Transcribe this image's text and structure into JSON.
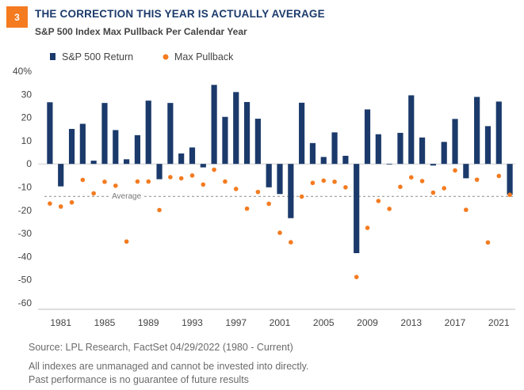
{
  "badge": "3",
  "title": "THE CORRECTION THIS YEAR IS ACTUALLY AVERAGE",
  "subtitle": "S&P 500 Index Max Pullback Per Calendar Year",
  "source": "Source: LPL Research, FactSet 04/29/2022 (1980 - Current)",
  "disclaimer1": "All indexes are unmanaged and cannot be invested into directly.",
  "disclaimer2": "Past performance is no guarantee of future results",
  "colors": {
    "bar": "#1b3a6b",
    "dot": "#f47b20",
    "title": "#1b3a6b",
    "badge": "#f47b20"
  },
  "chart_data": {
    "type": "bar",
    "title": "",
    "xlabel": "",
    "ylabel": "",
    "ylim": [
      -60,
      40
    ],
    "yticks": [
      40,
      30,
      20,
      10,
      0,
      -10,
      -20,
      -30,
      -40,
      -50,
      -60
    ],
    "ytick_labels": [
      "40%",
      "30",
      "20",
      "10",
      "0",
      "-10",
      "-20",
      "-30",
      "-40",
      "-50",
      "-60"
    ],
    "xtick_labels": [
      "1981",
      "1985",
      "1989",
      "1993",
      "1997",
      "2001",
      "2005",
      "2009",
      "2013",
      "2017",
      "2021"
    ],
    "xticks": [
      1981,
      1985,
      1989,
      1993,
      1997,
      2001,
      2005,
      2009,
      2013,
      2017,
      2021
    ],
    "legend_position": "top-left",
    "grid": false,
    "average_line": {
      "label": "Average",
      "value": -14
    },
    "categories": [
      1980,
      1981,
      1982,
      1983,
      1984,
      1985,
      1986,
      1987,
      1988,
      1989,
      1990,
      1991,
      1992,
      1993,
      1994,
      1995,
      1996,
      1997,
      1998,
      1999,
      2000,
      2001,
      2002,
      2003,
      2004,
      2005,
      2006,
      2007,
      2008,
      2009,
      2010,
      2011,
      2012,
      2013,
      2014,
      2015,
      2016,
      2017,
      2018,
      2019,
      2020,
      2021,
      2022
    ],
    "series": [
      {
        "name": "S&P 500 Return",
        "kind": "bar",
        "values": [
          26.6,
          -9.7,
          15.1,
          17.3,
          1.4,
          26.3,
          14.6,
          2.0,
          12.4,
          27.3,
          -6.6,
          26.3,
          4.5,
          7.1,
          -1.5,
          34.1,
          20.3,
          31.0,
          26.7,
          19.5,
          -10.1,
          -13.0,
          -23.4,
          26.4,
          9.0,
          3.0,
          13.6,
          3.5,
          -38.5,
          23.5,
          12.8,
          0.0,
          13.4,
          29.6,
          11.4,
          -0.7,
          9.5,
          19.4,
          -6.2,
          28.9,
          16.3,
          26.9,
          -13.3
        ]
      },
      {
        "name": "Max Pullback",
        "kind": "dot",
        "values": [
          -17.1,
          -18.4,
          -16.6,
          -6.9,
          -12.7,
          -7.7,
          -9.4,
          -33.5,
          -7.6,
          -7.6,
          -19.9,
          -5.7,
          -6.2,
          -5.0,
          -8.9,
          -2.5,
          -7.6,
          -10.8,
          -19.3,
          -12.1,
          -17.2,
          -29.7,
          -33.8,
          -14.1,
          -8.2,
          -7.2,
          -7.7,
          -10.1,
          -48.8,
          -27.6,
          -16.0,
          -19.4,
          -9.9,
          -5.8,
          -7.4,
          -12.4,
          -10.5,
          -2.8,
          -19.8,
          -6.8,
          -33.9,
          -5.2,
          -13.3
        ]
      }
    ]
  }
}
